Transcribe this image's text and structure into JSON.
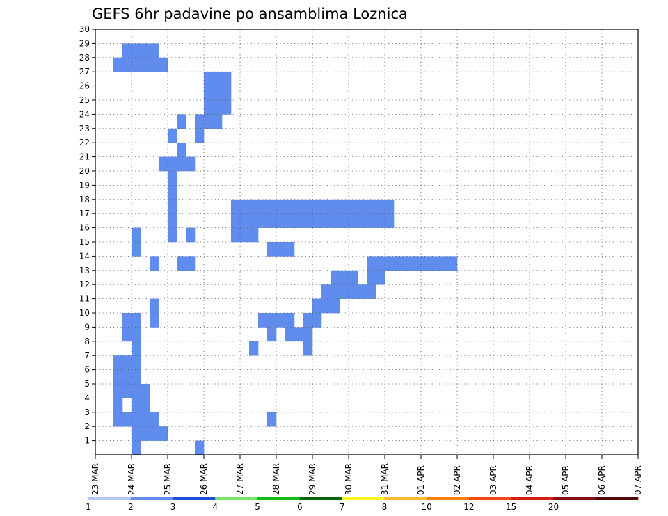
{
  "chart_data": {
    "type": "heatmap",
    "title": "GEFS 6hr padavine po ansamblima Loznica",
    "xlabel": "",
    "ylabel": "",
    "x_ticks": [
      "23 MAR",
      "24 MAR",
      "25 MAR",
      "26 MAR",
      "27 MAR",
      "28 MAR",
      "29 MAR",
      "30 MAR",
      "31 MAR",
      "01 APR",
      "02 APR",
      "03 APR",
      "04 APR",
      "05 APR",
      "06 APR",
      "07 APR"
    ],
    "y_ticks": [
      1,
      2,
      3,
      4,
      5,
      6,
      7,
      8,
      9,
      10,
      11,
      12,
      13,
      14,
      15,
      16,
      17,
      18,
      19,
      20,
      21,
      22,
      23,
      24,
      25,
      26,
      27,
      28,
      29,
      30
    ],
    "x_step_hours": 6,
    "n_steps": 60,
    "n_members": 30,
    "grid": true,
    "colorbar": {
      "placement": "bottom",
      "levels": [
        1,
        2,
        3,
        4,
        5,
        6,
        7,
        8,
        10,
        12,
        15,
        20
      ],
      "colors": [
        "#b4c8f5",
        "#5f8ced",
        "#1e4ed7",
        "#78e664",
        "#14bb14",
        "#096409",
        "#fff51e",
        "#fbb832",
        "#fb7d0a",
        "#f34817",
        "#d21e14",
        "#821214",
        "#500a0a"
      ]
    },
    "colorbar_labels": [
      "1",
      "2",
      "3",
      "4",
      "5",
      "6",
      "7",
      "8",
      "10",
      "12",
      "15",
      "20"
    ],
    "cells": [
      [
        4,
        1,
        1
      ],
      [
        7,
        2,
        1
      ],
      [
        4,
        3,
        1
      ],
      [
        4,
        4,
        1
      ],
      [
        5,
        4,
        1
      ],
      [
        4,
        5,
        1
      ],
      [
        5,
        5,
        1
      ],
      [
        4,
        6,
        1
      ],
      [
        4,
        7,
        1
      ],
      [
        4,
        8,
        1
      ],
      [
        3,
        9,
        1
      ],
      [
        4,
        9,
        1
      ],
      [
        3,
        10,
        1
      ],
      [
        4,
        10,
        1
      ],
      [
        6,
        10,
        1
      ],
      [
        6,
        11,
        1
      ],
      [
        4,
        15,
        1
      ],
      [
        4,
        16,
        1
      ],
      [
        8,
        16,
        1
      ],
      [
        8,
        17,
        1
      ],
      [
        8,
        18,
        1
      ],
      [
        8,
        19,
        1
      ],
      [
        8,
        20,
        1
      ],
      [
        7,
        21,
        1
      ],
      [
        8,
        21,
        1
      ],
      [
        9,
        21,
        1
      ],
      [
        10,
        21,
        1
      ],
      [
        9,
        22,
        1
      ],
      [
        8,
        23,
        1
      ],
      [
        11,
        23,
        1
      ],
      [
        9,
        24,
        1
      ],
      [
        11,
        24,
        1
      ],
      [
        12,
        24,
        1
      ],
      [
        13,
        24,
        1
      ],
      [
        12,
        25,
        1
      ],
      [
        13,
        25,
        1
      ],
      [
        14,
        25,
        1
      ],
      [
        12,
        26,
        1
      ],
      [
        13,
        26,
        1
      ],
      [
        14,
        26,
        1
      ],
      [
        12,
        27,
        1
      ],
      [
        13,
        27,
        1
      ],
      [
        14,
        27,
        1
      ],
      [
        2,
        28,
        1
      ],
      [
        3,
        28,
        1
      ],
      [
        4,
        28,
        1
      ],
      [
        5,
        28,
        1
      ],
      [
        6,
        28,
        1
      ],
      [
        7,
        28,
        1
      ],
      [
        3,
        29,
        1
      ],
      [
        4,
        29,
        1
      ],
      [
        5,
        29,
        1
      ],
      [
        6,
        29,
        1
      ],
      [
        19,
        9,
        1
      ],
      [
        21,
        9,
        1
      ],
      [
        21,
        10,
        1
      ],
      [
        6,
        14,
        1
      ],
      [
        9,
        14,
        1
      ],
      [
        10,
        14,
        1
      ],
      [
        10,
        16,
        1
      ],
      [
        11,
        1,
        1
      ],
      [
        3,
        6,
        1
      ],
      [
        3,
        7,
        1
      ],
      [
        4,
        2,
        1
      ],
      [
        5,
        2,
        1
      ],
      [
        6,
        2,
        1
      ],
      [
        7,
        2,
        1
      ],
      [
        2,
        3,
        1
      ],
      [
        3,
        3,
        1
      ],
      [
        4,
        3,
        1
      ],
      [
        5,
        3,
        1
      ],
      [
        6,
        3,
        1
      ],
      [
        2,
        4,
        1
      ],
      [
        2,
        5,
        1
      ],
      [
        3,
        5,
        1
      ],
      [
        2,
        6,
        1
      ],
      [
        2,
        7,
        1
      ],
      [
        19,
        3,
        1
      ],
      [
        17,
        8,
        1
      ],
      [
        23,
        8,
        1
      ],
      [
        21,
        9,
        1
      ],
      [
        22,
        9,
        1
      ],
      [
        23,
        9,
        1
      ],
      [
        18,
        10,
        1
      ],
      [
        19,
        10,
        1
      ],
      [
        20,
        10,
        1
      ],
      [
        21,
        10,
        1
      ],
      [
        23,
        10,
        1
      ],
      [
        24,
        10,
        1
      ],
      [
        24,
        11,
        1
      ],
      [
        25,
        11,
        1
      ],
      [
        26,
        11,
        1
      ],
      [
        25,
        12,
        1
      ],
      [
        26,
        12,
        1
      ],
      [
        27,
        12,
        1
      ],
      [
        28,
        12,
        1
      ],
      [
        29,
        12,
        1
      ],
      [
        30,
        12,
        1
      ],
      [
        26,
        13,
        1
      ],
      [
        27,
        13,
        1
      ],
      [
        28,
        13,
        1
      ],
      [
        30,
        13,
        1
      ],
      [
        31,
        13,
        1
      ],
      [
        30,
        14,
        1
      ],
      [
        31,
        14,
        1
      ],
      [
        32,
        14,
        1
      ],
      [
        33,
        14,
        1
      ],
      [
        34,
        14,
        1
      ],
      [
        35,
        14,
        1
      ],
      [
        36,
        14,
        1
      ],
      [
        37,
        14,
        1
      ],
      [
        38,
        14,
        1
      ],
      [
        39,
        14,
        1
      ],
      [
        19,
        15,
        1
      ],
      [
        20,
        15,
        1
      ],
      [
        21,
        15,
        1
      ],
      [
        15,
        16,
        1
      ],
      [
        16,
        16,
        1
      ],
      [
        17,
        16,
        1
      ],
      [
        15,
        17,
        1
      ],
      [
        16,
        17,
        1
      ],
      [
        17,
        17,
        1
      ],
      [
        18,
        17,
        1
      ],
      [
        19,
        17,
        1
      ],
      [
        20,
        17,
        1
      ],
      [
        21,
        17,
        1
      ],
      [
        22,
        17,
        1
      ],
      [
        23,
        17,
        1
      ],
      [
        24,
        17,
        1
      ],
      [
        25,
        17,
        1
      ],
      [
        26,
        17,
        1
      ],
      [
        27,
        17,
        1
      ],
      [
        28,
        17,
        1
      ],
      [
        29,
        17,
        1
      ],
      [
        30,
        17,
        1
      ],
      [
        31,
        17,
        1
      ],
      [
        32,
        17,
        1
      ],
      [
        15,
        18,
        1
      ],
      [
        16,
        18,
        1
      ],
      [
        17,
        18,
        1
      ],
      [
        18,
        18,
        1
      ],
      [
        19,
        18,
        1
      ],
      [
        20,
        18,
        1
      ],
      [
        21,
        18,
        1
      ],
      [
        22,
        18,
        1
      ],
      [
        23,
        18,
        1
      ],
      [
        24,
        18,
        1
      ],
      [
        25,
        18,
        1
      ],
      [
        26,
        18,
        1
      ],
      [
        27,
        18,
        1
      ],
      [
        28,
        18,
        1
      ],
      [
        29,
        18,
        1
      ],
      [
        30,
        18,
        1
      ],
      [
        31,
        18,
        1
      ],
      [
        32,
        18,
        1
      ]
    ]
  }
}
